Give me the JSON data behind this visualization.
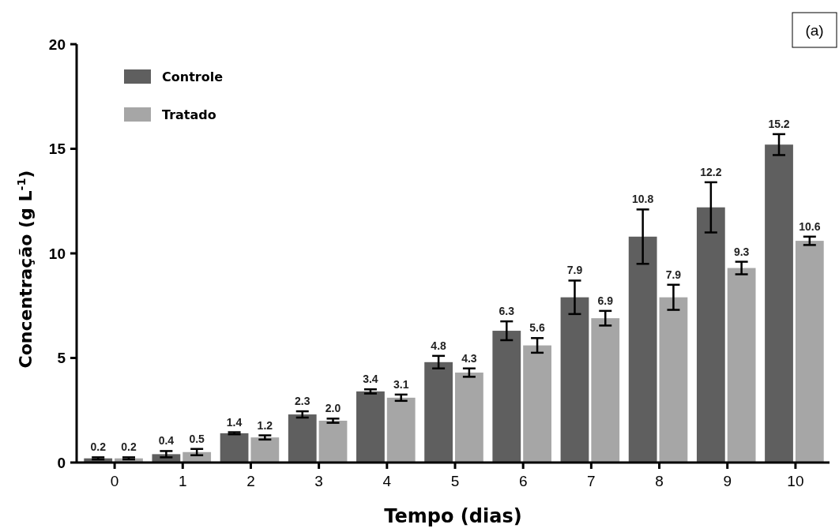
{
  "chart_data": {
    "type": "bar",
    "xlabel": "Tempo (dias)",
    "ylabel": "Concentração (g L$^{-1}$)",
    "categories": [
      "0",
      "1",
      "2",
      "3",
      "4",
      "5",
      "6",
      "7",
      "8",
      "9",
      "10"
    ],
    "series": [
      {
        "name": "Controle",
        "color": "#5f5f5f",
        "values": [
          0.2,
          0.4,
          1.4,
          2.3,
          3.4,
          4.8,
          6.3,
          7.9,
          10.8,
          12.2,
          15.2
        ],
        "errors": [
          0.05,
          0.15,
          0.05,
          0.15,
          0.1,
          0.3,
          0.45,
          0.8,
          1.3,
          1.2,
          0.5
        ],
        "value_labels": [
          "0.2",
          "0.4",
          "1.4",
          "2.3",
          "3.4",
          "4.8",
          "6.3",
          "7.9",
          "10.8",
          "12.2",
          "15.2"
        ]
      },
      {
        "name": "Tratado",
        "color": "#a6a6a6",
        "values": [
          0.2,
          0.5,
          1.2,
          2.0,
          3.1,
          4.3,
          5.6,
          6.9,
          7.9,
          9.3,
          10.6
        ],
        "errors": [
          0.05,
          0.15,
          0.1,
          0.1,
          0.15,
          0.2,
          0.35,
          0.35,
          0.6,
          0.3,
          0.2
        ],
        "value_labels": [
          "0.2",
          "0.5",
          "1.2",
          "2.0",
          "3.1",
          "4.3",
          "5.6",
          "6.9",
          "7.9",
          "9.3",
          "10.6"
        ]
      }
    ],
    "ylim": [
      0,
      20
    ],
    "yticks": [
      0,
      5,
      10,
      15,
      20
    ],
    "grid": false,
    "legend": "top left",
    "annotations": [
      "(a)"
    ]
  }
}
